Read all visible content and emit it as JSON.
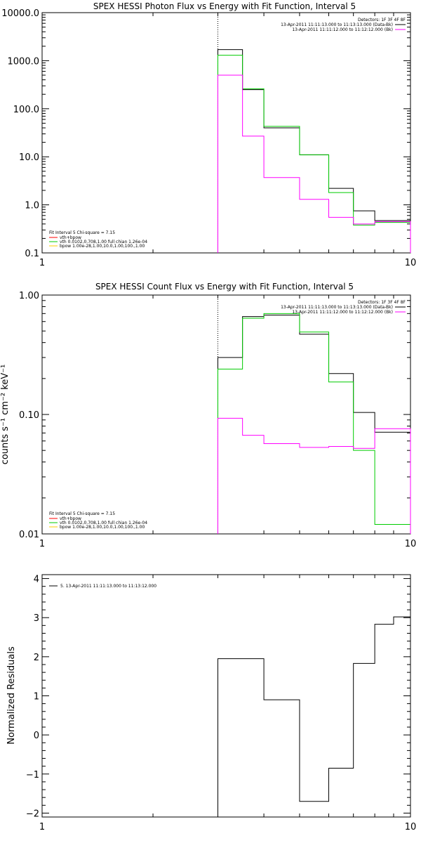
{
  "colors": {
    "data": "#000000",
    "total": "#00cc00",
    "bk": "#ff00ff",
    "c_vth_bpow": "#ff0000",
    "c_vth": "#00cc00",
    "c_bpow": "#ffcc00"
  },
  "chart_data": [
    {
      "type": "line",
      "title": "SPEX HESSI Photon Flux vs Energy with Fit Function, Interval 5",
      "xlabel": "",
      "ylabel": "",
      "x_scale": "log",
      "y_scale": "log",
      "xlim": [
        1,
        10
      ],
      "ylim": [
        0.1,
        10000
      ],
      "xticks": [
        {
          "v": 1,
          "label": "1"
        },
        {
          "v": 10,
          "label": "10"
        }
      ],
      "yticks": [
        {
          "v": 0.1,
          "label": "0.1"
        },
        {
          "v": 1,
          "label": "1.0"
        },
        {
          "v": 10,
          "label": "10.0"
        },
        {
          "v": 100,
          "label": "100.0"
        },
        {
          "v": 1000,
          "label": "1000.0"
        },
        {
          "v": 10000,
          "label": "10000.0"
        }
      ],
      "vline_x": 3.0,
      "edges": [
        3.0,
        3.5,
        4.0,
        5.0,
        6.0,
        7.0,
        8.0,
        10.0
      ],
      "series": [
        {
          "key": "data",
          "values": [
            1700,
            250,
            40,
            11,
            2.2,
            0.75,
            0.47
          ]
        },
        {
          "key": "total",
          "values": [
            1300,
            260,
            43,
            11,
            1.8,
            0.38,
            0.43
          ]
        },
        {
          "key": "bk",
          "values": [
            500,
            27,
            3.7,
            1.3,
            0.55,
            0.4,
            0.45
          ]
        }
      ],
      "legend_tr": {
        "header": "Detectors: 1F 3F 4F 8F",
        "lines": [
          {
            "text": "13-Apr-2011 11:11:13.000 to 11:13:13.000 (Data-Bk)",
            "key": "data"
          },
          {
            "text": "13-Apr-2011 11:11:12.000 to 11:12:12.000 (Bk)",
            "key": "bk"
          }
        ]
      },
      "legend_bl": {
        "header": "Fit Interval 5   Chi-square = 7.15",
        "lines": [
          {
            "text": "vth+bpow",
            "key": "c_vth_bpow"
          },
          {
            "text": "vth 0.0102,0.708,1.00  full chian 1.26e-04",
            "key": "c_vth"
          },
          {
            "text": "bpow 1.00e-28,1.00,10.0,1.00,100.,1.00",
            "key": "c_bpow"
          }
        ]
      }
    },
    {
      "type": "line",
      "title": "SPEX HESSI Count Flux vs Energy with Fit Function, Interval 5",
      "xlabel": "",
      "ylabel": "counts s⁻¹ cm⁻² keV⁻¹",
      "x_scale": "log",
      "y_scale": "log",
      "xlim": [
        1,
        10
      ],
      "ylim": [
        0.01,
        1.0
      ],
      "xticks": [
        {
          "v": 1,
          "label": "1"
        },
        {
          "v": 10,
          "label": "10"
        }
      ],
      "yticks": [
        {
          "v": 0.01,
          "label": "0.01"
        },
        {
          "v": 0.1,
          "label": "0.10"
        },
        {
          "v": 1,
          "label": "1.00"
        }
      ],
      "vline_x": 3.0,
      "edges": [
        3.0,
        3.5,
        4.0,
        5.0,
        6.0,
        7.0,
        8.0,
        10.0
      ],
      "series": [
        {
          "key": "data",
          "values": [
            0.3,
            0.66,
            0.68,
            0.47,
            0.22,
            0.104,
            0.071
          ]
        },
        {
          "key": "total",
          "values": [
            0.24,
            0.64,
            0.7,
            0.49,
            0.187,
            0.05,
            0.012
          ]
        },
        {
          "key": "bk",
          "values": [
            0.093,
            0.067,
            0.057,
            0.053,
            0.054,
            0.052,
            0.076
          ]
        }
      ],
      "legend_tr": {
        "header": "Detectors: 1F 3F 4F 8F",
        "lines": [
          {
            "text": "13-Apr-2011 11:11:13.000 to 11:13:13.000 (Data-Bk)",
            "key": "data"
          },
          {
            "text": "13-Apr-2011 11:11:12.000 to 11:12:12.000 (Bk)",
            "key": "bk"
          }
        ]
      },
      "legend_bl": {
        "header": "Fit Interval 5   Chi-square = 7.15",
        "lines": [
          {
            "text": "vth+bpow",
            "key": "c_vth_bpow"
          },
          {
            "text": "vth 0.0102,0.708,1.00  full chian 1.26e-04",
            "key": "c_vth"
          },
          {
            "text": "bpow 1.00e-28,1.00,10.0,1.00,100.,1.00",
            "key": "c_bpow"
          }
        ]
      }
    },
    {
      "type": "line",
      "title": "",
      "xlabel": "",
      "ylabel": "Normalized Residuals",
      "x_scale": "log",
      "y_scale": "linear",
      "xlim": [
        1,
        10
      ],
      "ylim": [
        -2.1,
        4.1
      ],
      "xticks": [
        {
          "v": 1,
          "label": "1"
        },
        {
          "v": 10,
          "label": "10"
        }
      ],
      "yticks": [
        {
          "v": -2,
          "label": "−2"
        },
        {
          "v": -1,
          "label": "−1"
        },
        {
          "v": 0,
          "label": "0"
        },
        {
          "v": 1,
          "label": "1"
        },
        {
          "v": 2,
          "label": "2"
        },
        {
          "v": 3,
          "label": "3"
        },
        {
          "v": 4,
          "label": "4"
        }
      ],
      "edges": [
        3.0,
        4.0,
        5.0,
        6.0,
        7.0,
        8.0,
        9.0,
        10.0
      ],
      "series": [
        {
          "key": "data",
          "values": [
            1.95,
            0.9,
            -1.7,
            -0.85,
            1.83,
            2.83,
            3.02
          ]
        }
      ],
      "legend_tl": {
        "lines": [
          {
            "text": "5. 13-Apr-2011 11:11:13.000 to 11:13:12.000",
            "key": "data"
          }
        ]
      }
    }
  ]
}
